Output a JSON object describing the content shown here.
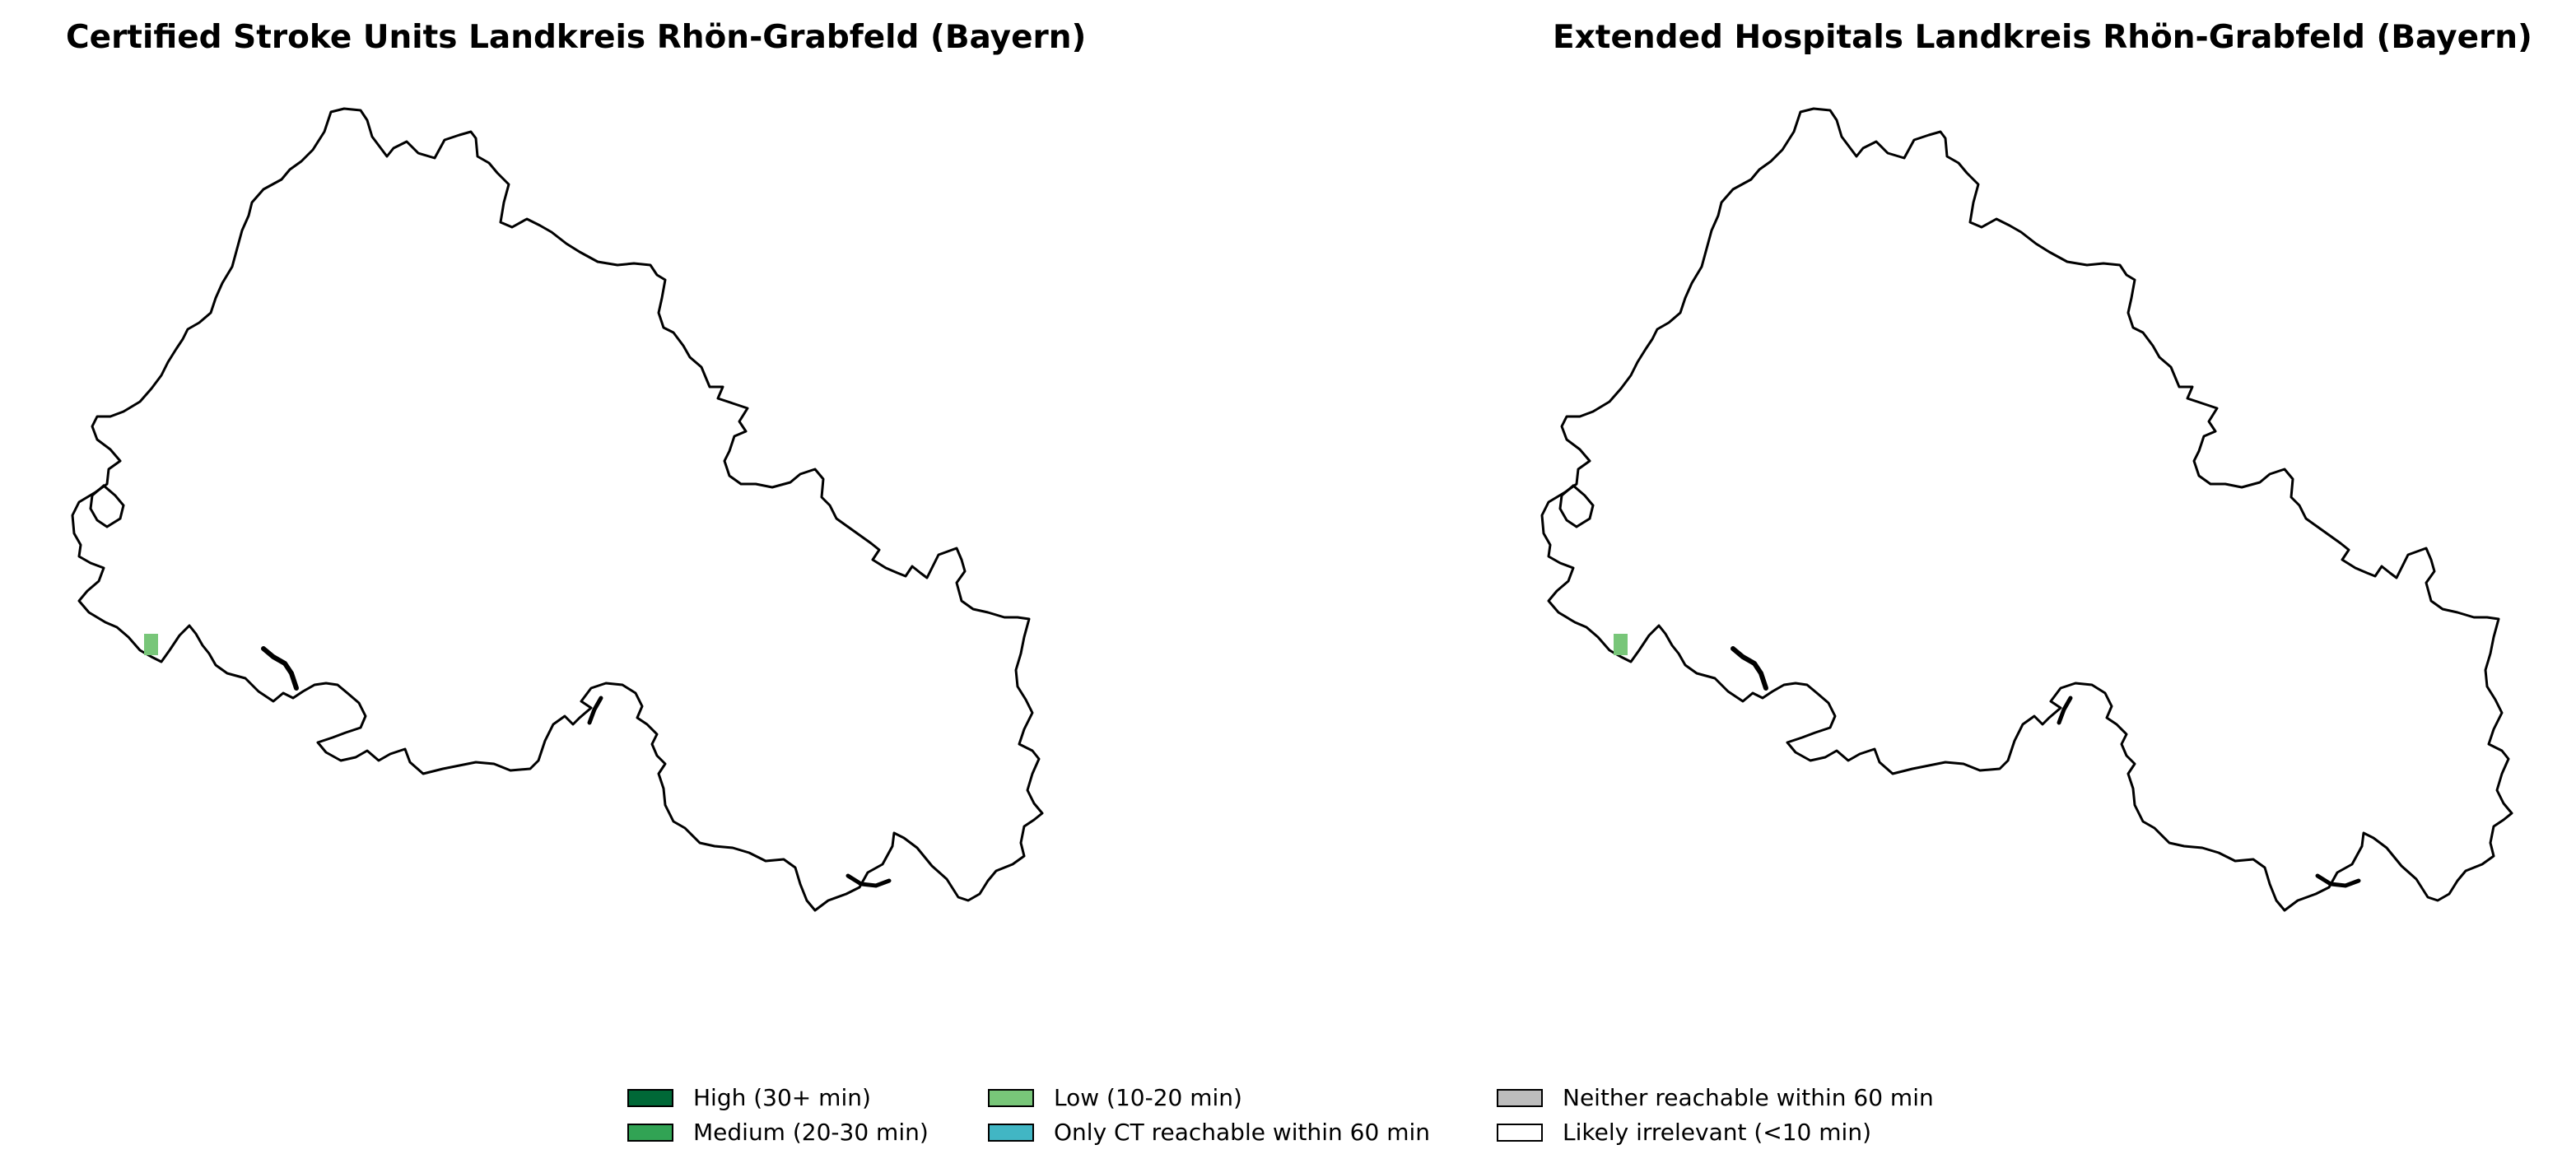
{
  "panels": {
    "left": {
      "title": "Certified Stroke Units Landkreis Rhön-Grabfeld (Bayern)"
    },
    "right": {
      "title": "Extended Hospitals Landkreis Rhön-Grabfeld (Bayern)"
    }
  },
  "legend": {
    "items": [
      {
        "label": "High (30+ min)",
        "color": "#006837"
      },
      {
        "label": "Medium (20-30 min)",
        "color": "#31a354"
      },
      {
        "label": "Low (10-20 min)",
        "color": "#78c679"
      },
      {
        "label": "Only CT reachable within 60 min",
        "color": "#41b6c4"
      },
      {
        "label": "Neither reachable within 60 min",
        "color": "#bdbdbd"
      },
      {
        "label": "Likely irrelevant (<10 min)",
        "color": "#ffffff"
      }
    ]
  },
  "map": {
    "boundary_color": "#000000",
    "highlight_category": "Low (10-20 min)",
    "highlight_color": "#78c679"
  }
}
